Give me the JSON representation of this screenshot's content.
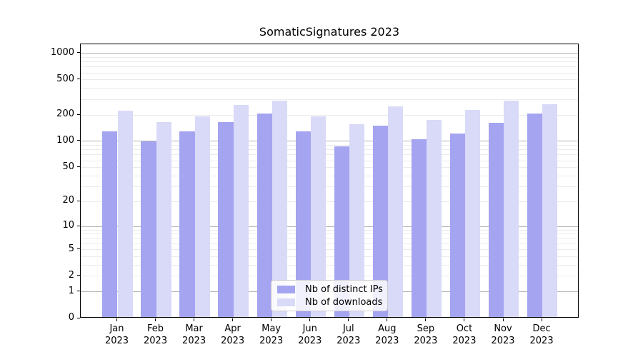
{
  "chart_data": {
    "type": "bar",
    "title": "SomaticSignatures 2023",
    "categories": [
      "Jan 2023",
      "Feb 2023",
      "Mar 2023",
      "Apr 2023",
      "May 2023",
      "Jun 2023",
      "Jul 2023",
      "Aug 2023",
      "Sep 2023",
      "Oct 2023",
      "Nov 2023",
      "Dec 2023"
    ],
    "series": [
      {
        "name": "Nb of distinct IPs",
        "color": "#a4a4f0",
        "values": [
          130,
          100,
          131,
          166,
          207,
          130,
          88,
          150,
          106,
          122,
          162,
          207
        ]
      },
      {
        "name": "Nb of downloads",
        "color": "#d9d9f8",
        "values": [
          225,
          166,
          192,
          261,
          288,
          192,
          157,
          249,
          174,
          227,
          292,
          264
        ]
      }
    ],
    "xlabel": "",
    "ylabel": "",
    "yscale": "log1p",
    "yticks": [
      0,
      1,
      2,
      5,
      10,
      20,
      50,
      100,
      200,
      500,
      1000
    ],
    "ylim": [
      0,
      1240
    ],
    "grid": {
      "major_values": [
        1,
        10,
        100,
        1000
      ],
      "minor_subs": [
        2,
        3,
        4,
        5,
        6,
        7,
        8,
        9
      ],
      "major_color": "#b4b4b4",
      "minor_color": "#ebebeb"
    },
    "legend_position": "lower-center-inside"
  }
}
